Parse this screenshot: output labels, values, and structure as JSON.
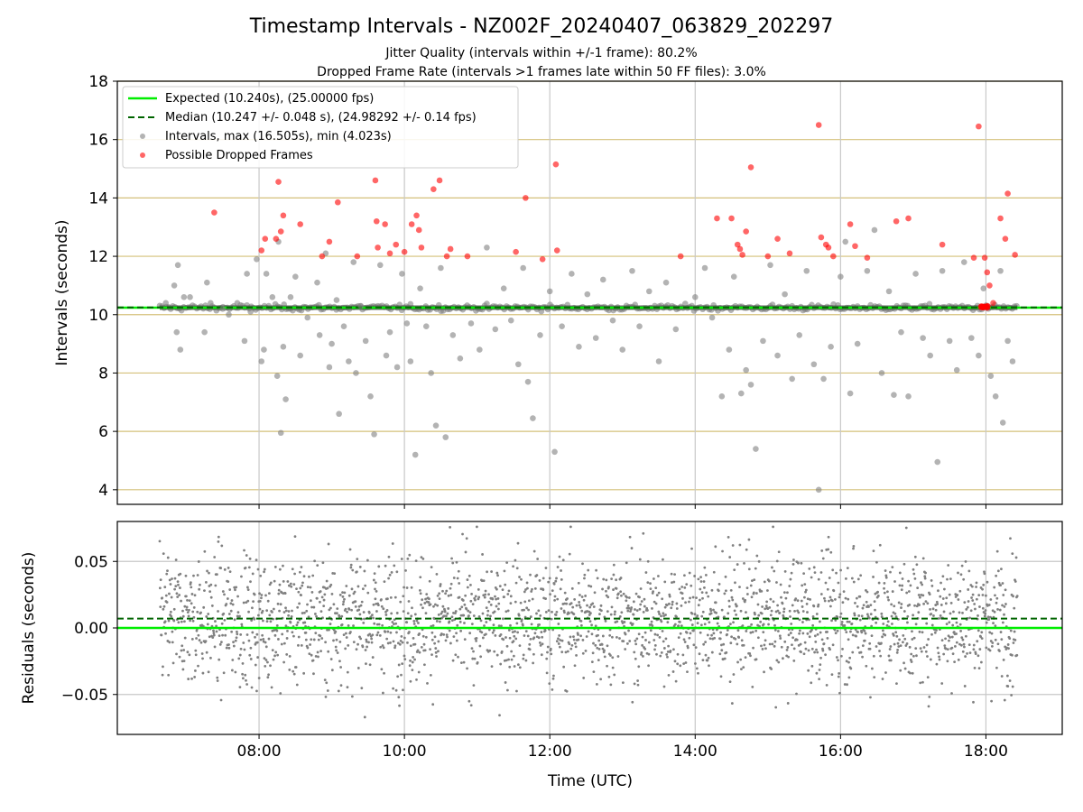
{
  "title": "Timestamp Intervals - NZ002F_20240407_063829_202297",
  "subtitle_1": "Jitter Quality (intervals within +/-1 frame): 80.2%",
  "subtitle_2": "Dropped Frame Rate (intervals >1 frames late within 50 FF files): 3.0%",
  "colors": {
    "expected": "#00ee00",
    "median": "#006400",
    "intervals": "#808080",
    "dropped": "#ff0000",
    "hgrid_top": "#d4c07a",
    "vgrid": "#c8c8c8"
  },
  "chart_data": [
    {
      "type": "scatter",
      "panel": "intervals",
      "ylabel": "Intervals (seconds)",
      "xlim": [
        "06:03",
        "19:03"
      ],
      "ylim": [
        3.5,
        18
      ],
      "yticks": [
        "4",
        "6",
        "8",
        "10",
        "12",
        "14",
        "16",
        "18"
      ],
      "ytick_values": [
        4,
        6,
        8,
        10,
        12,
        14,
        16,
        18
      ],
      "xticks": [
        "08:00",
        "10:00",
        "12:00",
        "14:00",
        "16:00",
        "18:00"
      ],
      "xtick_hours": [
        8,
        10,
        12,
        14,
        16,
        18
      ],
      "grid": true,
      "legend_position": "top-left",
      "legend": [
        "Expected (10.240s), (25.00000 fps)",
        "Median (10.247 +/- 0.048 s), (24.98292 +/- 0.14 fps)",
        "Intervals, max (16.505s), min (4.023s)",
        "Possible Dropped Frames"
      ],
      "expected_value": 10.24,
      "median_value": 10.247,
      "time_range": [
        "06:38",
        "18:26"
      ],
      "baseline_band_value": 10.24,
      "series": [
        {
          "name": "Intervals, max (16.505s), min (4.023s)",
          "points": [
            [
              "06:43",
              10.4
            ],
            [
              "06:50",
              11.0
            ],
            [
              "06:52",
              9.4
            ],
            [
              "06:53",
              11.7
            ],
            [
              "06:55",
              8.8
            ],
            [
              "06:58",
              10.6
            ],
            [
              "07:03",
              10.6
            ],
            [
              "07:15",
              9.4
            ],
            [
              "07:17",
              11.1
            ],
            [
              "07:20",
              10.4
            ],
            [
              "07:30",
              10.2
            ],
            [
              "07:35",
              10.0
            ],
            [
              "07:42",
              10.4
            ],
            [
              "07:48",
              9.1
            ],
            [
              "07:50",
              11.4
            ],
            [
              "07:53",
              10.1
            ],
            [
              "07:58",
              11.9
            ],
            [
              "08:02",
              8.4
            ],
            [
              "08:04",
              8.8
            ],
            [
              "08:06",
              11.4
            ],
            [
              "08:11",
              10.6
            ],
            [
              "08:15",
              7.9
            ],
            [
              "08:16",
              12.5
            ],
            [
              "08:18",
              5.95
            ],
            [
              "08:20",
              8.9
            ],
            [
              "08:22",
              7.1
            ],
            [
              "08:26",
              10.6
            ],
            [
              "08:30",
              11.3
            ],
            [
              "08:34",
              8.6
            ],
            [
              "08:40",
              9.9
            ],
            [
              "08:48",
              11.1
            ],
            [
              "08:50",
              9.3
            ],
            [
              "08:55",
              12.1
            ],
            [
              "08:58",
              8.2
            ],
            [
              "09:00",
              9.0
            ],
            [
              "09:04",
              10.5
            ],
            [
              "09:06",
              6.6
            ],
            [
              "09:10",
              9.6
            ],
            [
              "09:14",
              8.4
            ],
            [
              "09:18",
              11.8
            ],
            [
              "09:20",
              8.0
            ],
            [
              "09:24",
              10.3
            ],
            [
              "09:28",
              9.1
            ],
            [
              "09:32",
              7.2
            ],
            [
              "09:35",
              5.9
            ],
            [
              "09:40",
              11.7
            ],
            [
              "09:45",
              8.6
            ],
            [
              "09:48",
              9.4
            ],
            [
              "09:54",
              8.2
            ],
            [
              "09:58",
              11.4
            ],
            [
              "10:02",
              9.7
            ],
            [
              "10:05",
              8.4
            ],
            [
              "10:09",
              5.2
            ],
            [
              "10:13",
              10.9
            ],
            [
              "10:18",
              9.6
            ],
            [
              "10:22",
              8.0
            ],
            [
              "10:26",
              6.2
            ],
            [
              "10:30",
              11.6
            ],
            [
              "10:34",
              5.8
            ],
            [
              "10:40",
              9.3
            ],
            [
              "10:46",
              8.5
            ],
            [
              "10:55",
              9.7
            ],
            [
              "11:02",
              8.8
            ],
            [
              "11:08",
              12.3
            ],
            [
              "11:15",
              9.5
            ],
            [
              "11:22",
              10.9
            ],
            [
              "11:28",
              9.8
            ],
            [
              "11:34",
              8.3
            ],
            [
              "11:38",
              11.6
            ],
            [
              "11:42",
              7.7
            ],
            [
              "11:46",
              6.45
            ],
            [
              "11:52",
              9.3
            ],
            [
              "12:00",
              10.8
            ],
            [
              "12:04",
              5.3
            ],
            [
              "12:10",
              9.6
            ],
            [
              "12:18",
              11.4
            ],
            [
              "12:24",
              8.9
            ],
            [
              "12:31",
              10.7
            ],
            [
              "12:38",
              9.2
            ],
            [
              "12:44",
              11.2
            ],
            [
              "12:52",
              9.8
            ],
            [
              "13:00",
              8.8
            ],
            [
              "13:08",
              11.5
            ],
            [
              "13:14",
              9.6
            ],
            [
              "13:22",
              10.8
            ],
            [
              "13:30",
              8.4
            ],
            [
              "13:36",
              11.1
            ],
            [
              "13:44",
              9.5
            ],
            [
              "14:00",
              10.6
            ],
            [
              "14:08",
              11.6
            ],
            [
              "14:14",
              9.9
            ],
            [
              "14:22",
              7.2
            ],
            [
              "14:28",
              8.8
            ],
            [
              "14:32",
              11.3
            ],
            [
              "14:38",
              7.3
            ],
            [
              "14:42",
              8.1
            ],
            [
              "14:46",
              7.6
            ],
            [
              "14:50",
              5.4
            ],
            [
              "14:56",
              9.1
            ],
            [
              "15:02",
              11.7
            ],
            [
              "15:08",
              8.6
            ],
            [
              "15:14",
              10.7
            ],
            [
              "15:20",
              7.8
            ],
            [
              "15:26",
              9.3
            ],
            [
              "15:32",
              11.5
            ],
            [
              "15:38",
              8.3
            ],
            [
              "15:42",
              4.0
            ],
            [
              "15:46",
              7.8
            ],
            [
              "15:52",
              8.9
            ],
            [
              "16:00",
              11.3
            ],
            [
              "16:04",
              12.5
            ],
            [
              "16:08",
              7.3
            ],
            [
              "16:14",
              9.0
            ],
            [
              "16:22",
              11.5
            ],
            [
              "16:28",
              12.9
            ],
            [
              "16:34",
              8.0
            ],
            [
              "16:40",
              10.8
            ],
            [
              "16:44",
              7.25
            ],
            [
              "16:50",
              9.4
            ],
            [
              "16:56",
              7.2
            ],
            [
              "17:02",
              11.4
            ],
            [
              "17:08",
              9.2
            ],
            [
              "17:14",
              8.6
            ],
            [
              "17:20",
              4.95
            ],
            [
              "17:24",
              11.5
            ],
            [
              "17:30",
              9.1
            ],
            [
              "17:36",
              8.1
            ],
            [
              "17:42",
              11.8
            ],
            [
              "17:48",
              9.2
            ],
            [
              "17:54",
              8.6
            ],
            [
              "17:58",
              10.9
            ],
            [
              "18:04",
              7.9
            ],
            [
              "18:08",
              7.2
            ],
            [
              "18:12",
              11.5
            ],
            [
              "18:14",
              6.3
            ],
            [
              "18:18",
              9.1
            ],
            [
              "18:22",
              8.4
            ]
          ]
        },
        {
          "name": "Possible Dropped Frames",
          "points": [
            [
              "07:23",
              13.5
            ],
            [
              "08:02",
              12.2
            ],
            [
              "08:05",
              12.6
            ],
            [
              "08:14",
              12.6
            ],
            [
              "08:16",
              14.55
            ],
            [
              "08:18",
              12.85
            ],
            [
              "08:20",
              13.4
            ],
            [
              "08:34",
              13.1
            ],
            [
              "08:52",
              12.0
            ],
            [
              "08:58",
              12.5
            ],
            [
              "09:05",
              13.85
            ],
            [
              "09:21",
              12.0
            ],
            [
              "09:36",
              14.6
            ],
            [
              "09:37",
              13.2
            ],
            [
              "09:38",
              12.3
            ],
            [
              "09:44",
              13.1
            ],
            [
              "09:48",
              12.1
            ],
            [
              "09:53",
              12.4
            ],
            [
              "10:00",
              12.15
            ],
            [
              "10:06",
              13.1
            ],
            [
              "10:10",
              13.4
            ],
            [
              "10:12",
              12.9
            ],
            [
              "10:14",
              12.3
            ],
            [
              "10:24",
              14.3
            ],
            [
              "10:29",
              14.6
            ],
            [
              "10:35",
              12.0
            ],
            [
              "10:38",
              12.25
            ],
            [
              "10:52",
              12.0
            ],
            [
              "11:32",
              12.15
            ],
            [
              "11:40",
              14.0
            ],
            [
              "11:54",
              11.9
            ],
            [
              "12:05",
              15.15
            ],
            [
              "12:06",
              12.2
            ],
            [
              "13:48",
              12.0
            ],
            [
              "14:18",
              13.3
            ],
            [
              "14:30",
              13.3
            ],
            [
              "14:35",
              12.4
            ],
            [
              "14:37",
              12.25
            ],
            [
              "14:39",
              12.05
            ],
            [
              "14:42",
              12.85
            ],
            [
              "14:46",
              15.05
            ],
            [
              "15:00",
              12.0
            ],
            [
              "15:08",
              12.6
            ],
            [
              "15:18",
              12.1
            ],
            [
              "15:42",
              16.5
            ],
            [
              "15:44",
              12.65
            ],
            [
              "15:48",
              12.4
            ],
            [
              "15:50",
              12.3
            ],
            [
              "15:54",
              12.0
            ],
            [
              "16:12",
              12.35
            ],
            [
              "16:08",
              13.1
            ],
            [
              "16:22",
              11.95
            ],
            [
              "16:46",
              13.2
            ],
            [
              "16:56",
              13.3
            ],
            [
              "17:24",
              12.4
            ],
            [
              "17:50",
              11.95
            ],
            [
              "17:54",
              16.45
            ],
            [
              "17:59",
              11.95
            ],
            [
              "18:01",
              11.45
            ],
            [
              "18:03",
              11.0
            ],
            [
              "18:06",
              10.4
            ],
            [
              "18:12",
              13.3
            ],
            [
              "18:16",
              12.6
            ],
            [
              "18:18",
              14.15
            ],
            [
              "18:24",
              12.05
            ]
          ]
        }
      ]
    },
    {
      "type": "scatter",
      "panel": "residuals",
      "xlabel": "Time (UTC)",
      "ylabel": "Residuals (seconds)",
      "xlim": [
        "06:03",
        "19:03"
      ],
      "ylim": [
        -0.08,
        0.08
      ],
      "yticks": [
        "0.05",
        "0.00",
        "−0.05"
      ],
      "ytick_values": [
        0.05,
        0.0,
        -0.05
      ],
      "xticks": [
        "08:00",
        "10:00",
        "12:00",
        "14:00",
        "16:00",
        "18:00"
      ],
      "xtick_hours": [
        8,
        10,
        12,
        14,
        16,
        18
      ],
      "grid": true,
      "expected_value": 0.0,
      "median_value": 0.007,
      "time_range": [
        "06:38",
        "18:26"
      ],
      "residual_std": 0.024,
      "residual_max": 0.076,
      "residual_min": -0.067
    }
  ]
}
